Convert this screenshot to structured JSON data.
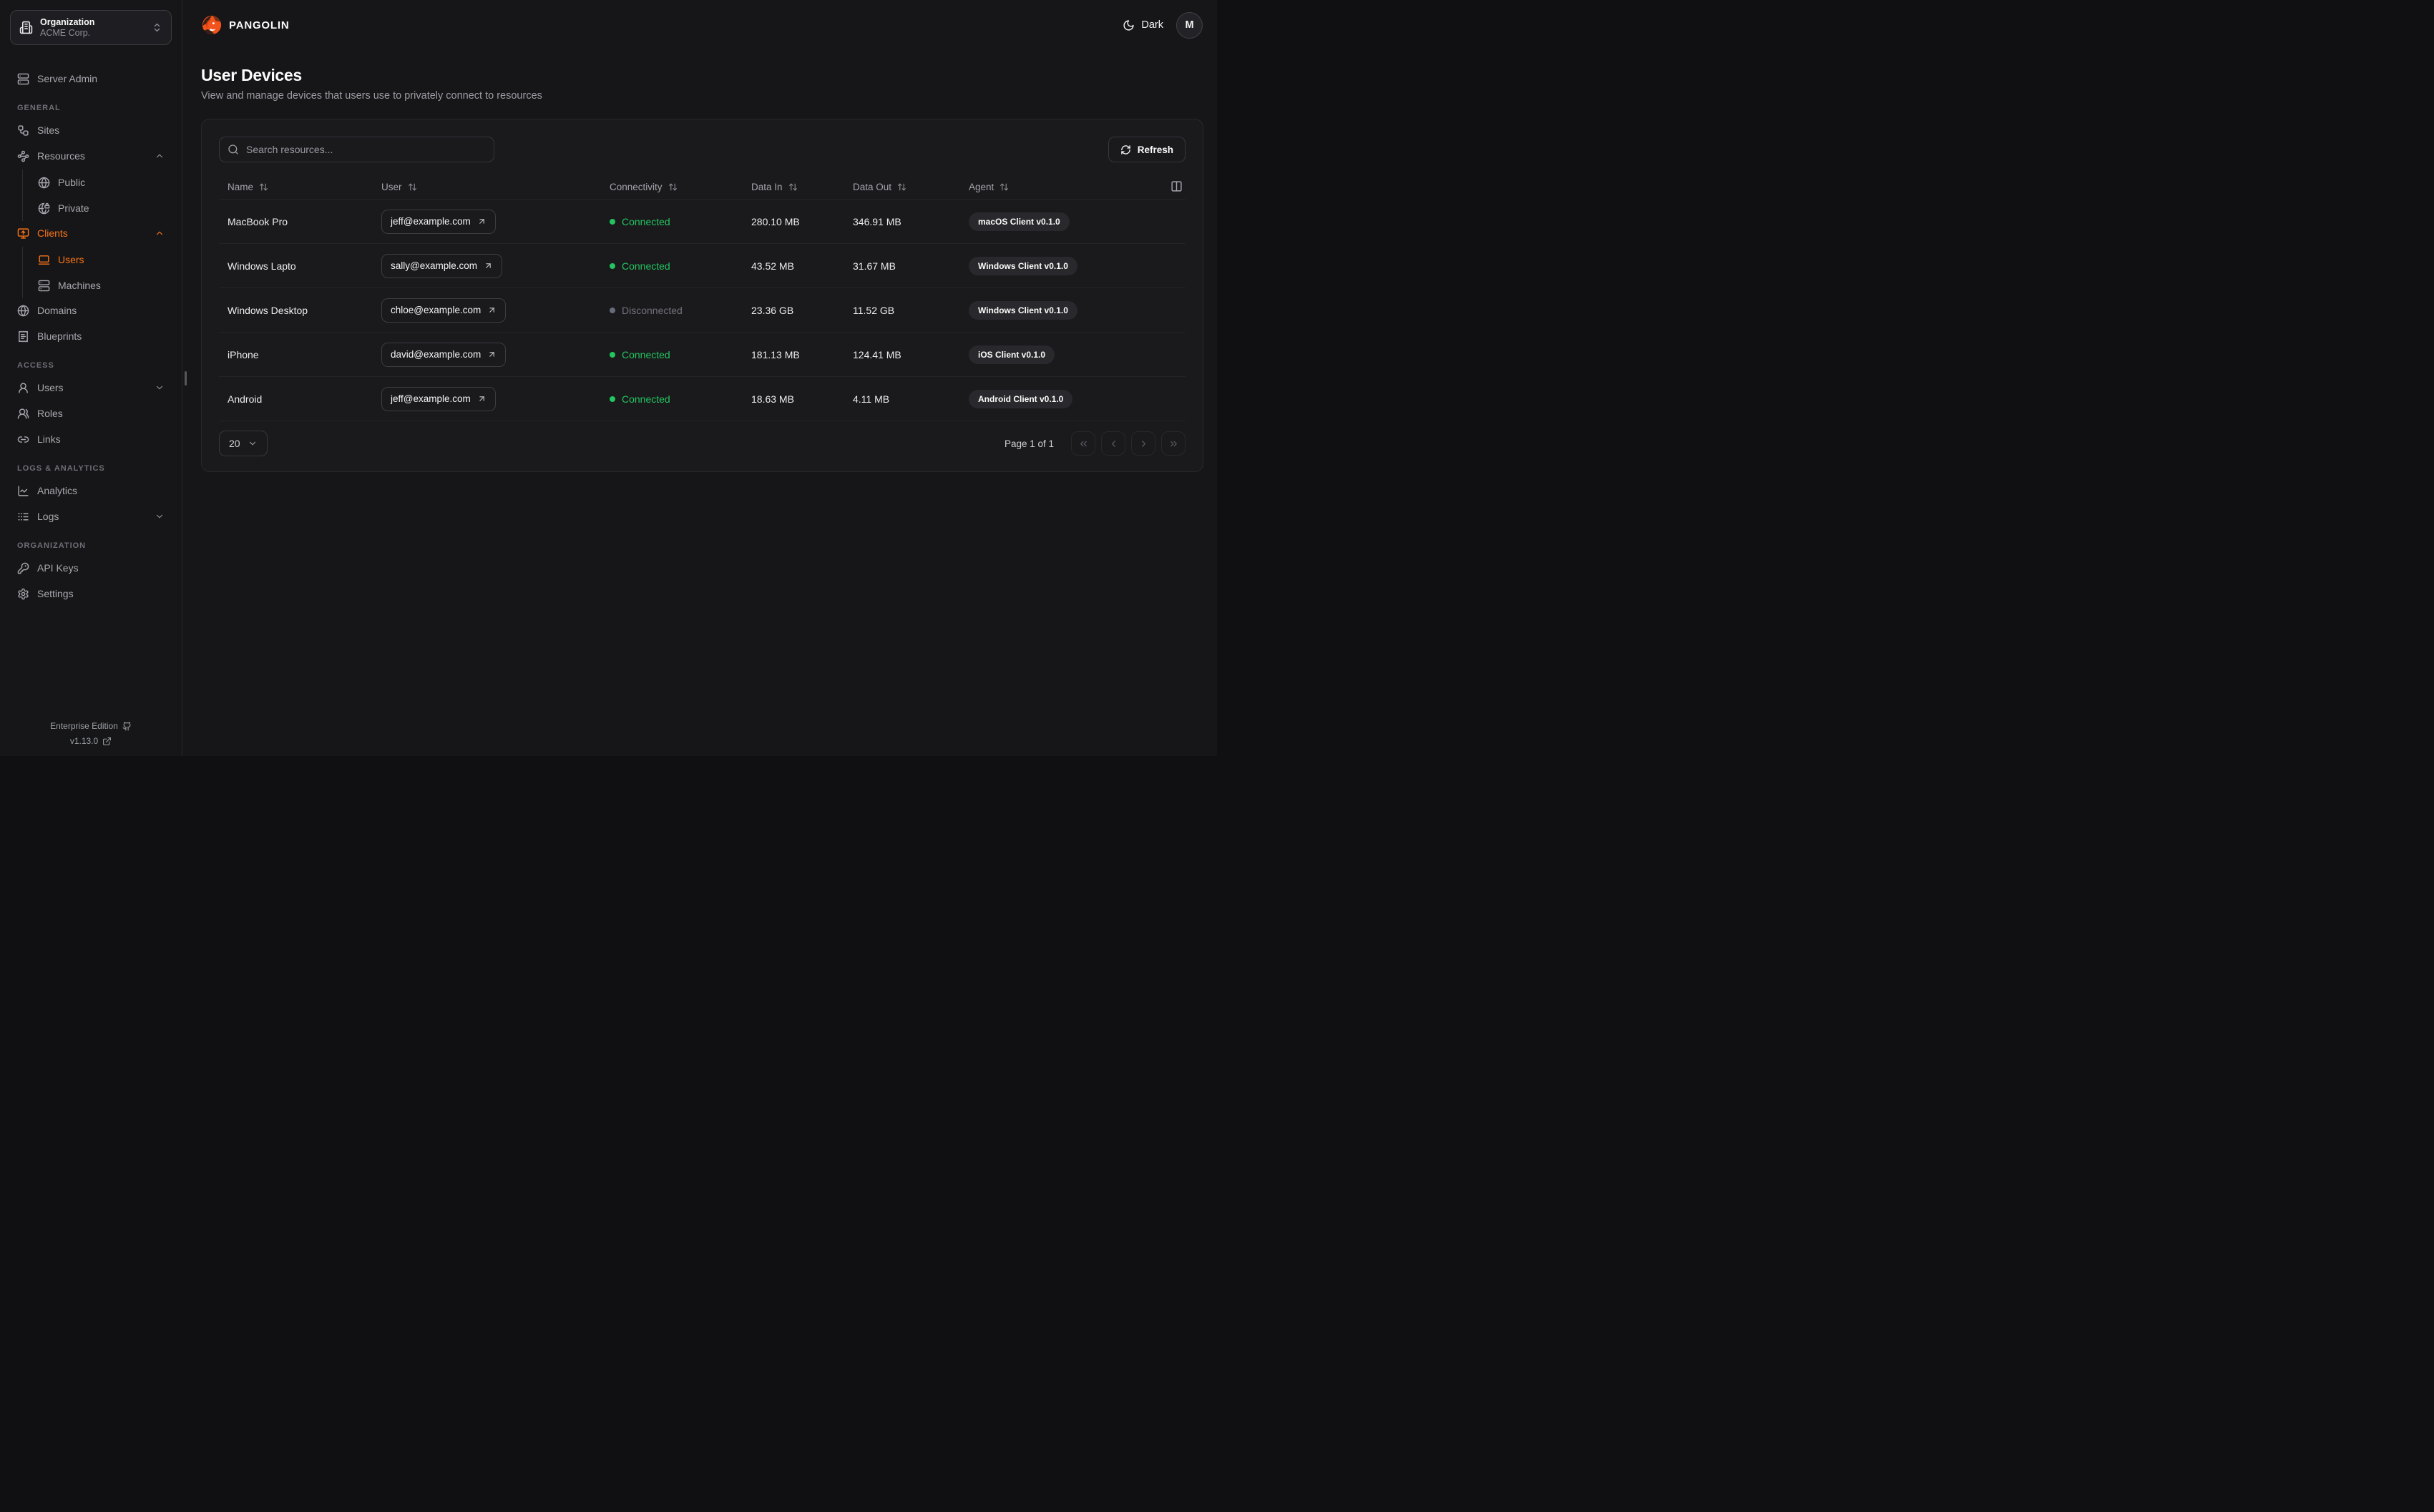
{
  "org_selector": {
    "label": "Organization",
    "value": "ACME Corp."
  },
  "brand": {
    "name": "PANGOLIN"
  },
  "theme_toggle": {
    "label": "Dark"
  },
  "avatar": {
    "initial": "M"
  },
  "page": {
    "title": "User Devices",
    "subtitle": "View and manage devices that users use to privately connect to resources"
  },
  "toolbar": {
    "search_placeholder": "Search resources...",
    "refresh_label": "Refresh"
  },
  "sidebar": {
    "standalone": [
      {
        "label": "Server Admin",
        "icon": "server-icon"
      }
    ],
    "sections": [
      {
        "label": "GENERAL",
        "items": [
          {
            "label": "Sites",
            "icon": "sites-icon"
          },
          {
            "label": "Resources",
            "icon": "resources-icon",
            "chevron": "up"
          },
          {
            "label": "Public",
            "icon": "globe-icon",
            "indent": true
          },
          {
            "label": "Private",
            "icon": "globe-lock-icon",
            "indent": true
          },
          {
            "label": "Clients",
            "icon": "monitor-up-icon",
            "chevron": "up",
            "active": true
          },
          {
            "label": "Users",
            "icon": "laptop-icon",
            "indent": true,
            "active": true
          },
          {
            "label": "Machines",
            "icon": "server-icon",
            "indent": true
          },
          {
            "label": "Domains",
            "icon": "globe-icon"
          },
          {
            "label": "Blueprints",
            "icon": "blueprint-icon"
          }
        ]
      },
      {
        "label": "ACCESS",
        "items": [
          {
            "label": "Users",
            "icon": "user-icon",
            "chevron": "down"
          },
          {
            "label": "Roles",
            "icon": "users-icon"
          },
          {
            "label": "Links",
            "icon": "link-icon"
          }
        ]
      },
      {
        "label": "LOGS & ANALYTICS",
        "items": [
          {
            "label": "Analytics",
            "icon": "analytics-icon"
          },
          {
            "label": "Logs",
            "icon": "logs-icon",
            "chevron": "down"
          }
        ]
      },
      {
        "label": "ORGANIZATION",
        "items": [
          {
            "label": "API Keys",
            "icon": "key-icon"
          },
          {
            "label": "Settings",
            "icon": "settings-icon"
          }
        ]
      }
    ],
    "footer": {
      "edition": "Enterprise Edition",
      "version": "v1.13.0"
    }
  },
  "table": {
    "columns": [
      "Name",
      "User",
      "Connectivity",
      "Data In",
      "Data Out",
      "Agent"
    ],
    "rows": [
      {
        "name": "MacBook Pro",
        "user": "jeff@example.com",
        "connectivity": "Connected",
        "connected": true,
        "data_in": "280.10 MB",
        "data_out": "346.91 MB",
        "agent": "macOS Client v0.1.0"
      },
      {
        "name": "Windows Lapto",
        "user": "sally@example.com",
        "connectivity": "Connected",
        "connected": true,
        "data_in": "43.52 MB",
        "data_out": "31.67 MB",
        "agent": "Windows Client v0.1.0"
      },
      {
        "name": "Windows Desktop",
        "user": "chloe@example.com",
        "connectivity": "Disconnected",
        "connected": false,
        "data_in": "23.36 GB",
        "data_out": "11.52 GB",
        "agent": "Windows Client v0.1.0"
      },
      {
        "name": "iPhone",
        "user": "david@example.com",
        "connectivity": "Connected",
        "connected": true,
        "data_in": "181.13 MB",
        "data_out": "124.41 MB",
        "agent": "iOS Client v0.1.0"
      },
      {
        "name": "Android",
        "user": "jeff@example.com",
        "connectivity": "Connected",
        "connected": true,
        "data_in": "18.63 MB",
        "data_out": "4.11 MB",
        "agent": "Android Client v0.1.0"
      }
    ]
  },
  "pagination": {
    "page_size": "20",
    "status": "Page 1 of 1"
  },
  "colors": {
    "accent": "#f97316",
    "connected": "#22c55e",
    "disconnected": "#71717a",
    "logo": "#f2521b"
  }
}
